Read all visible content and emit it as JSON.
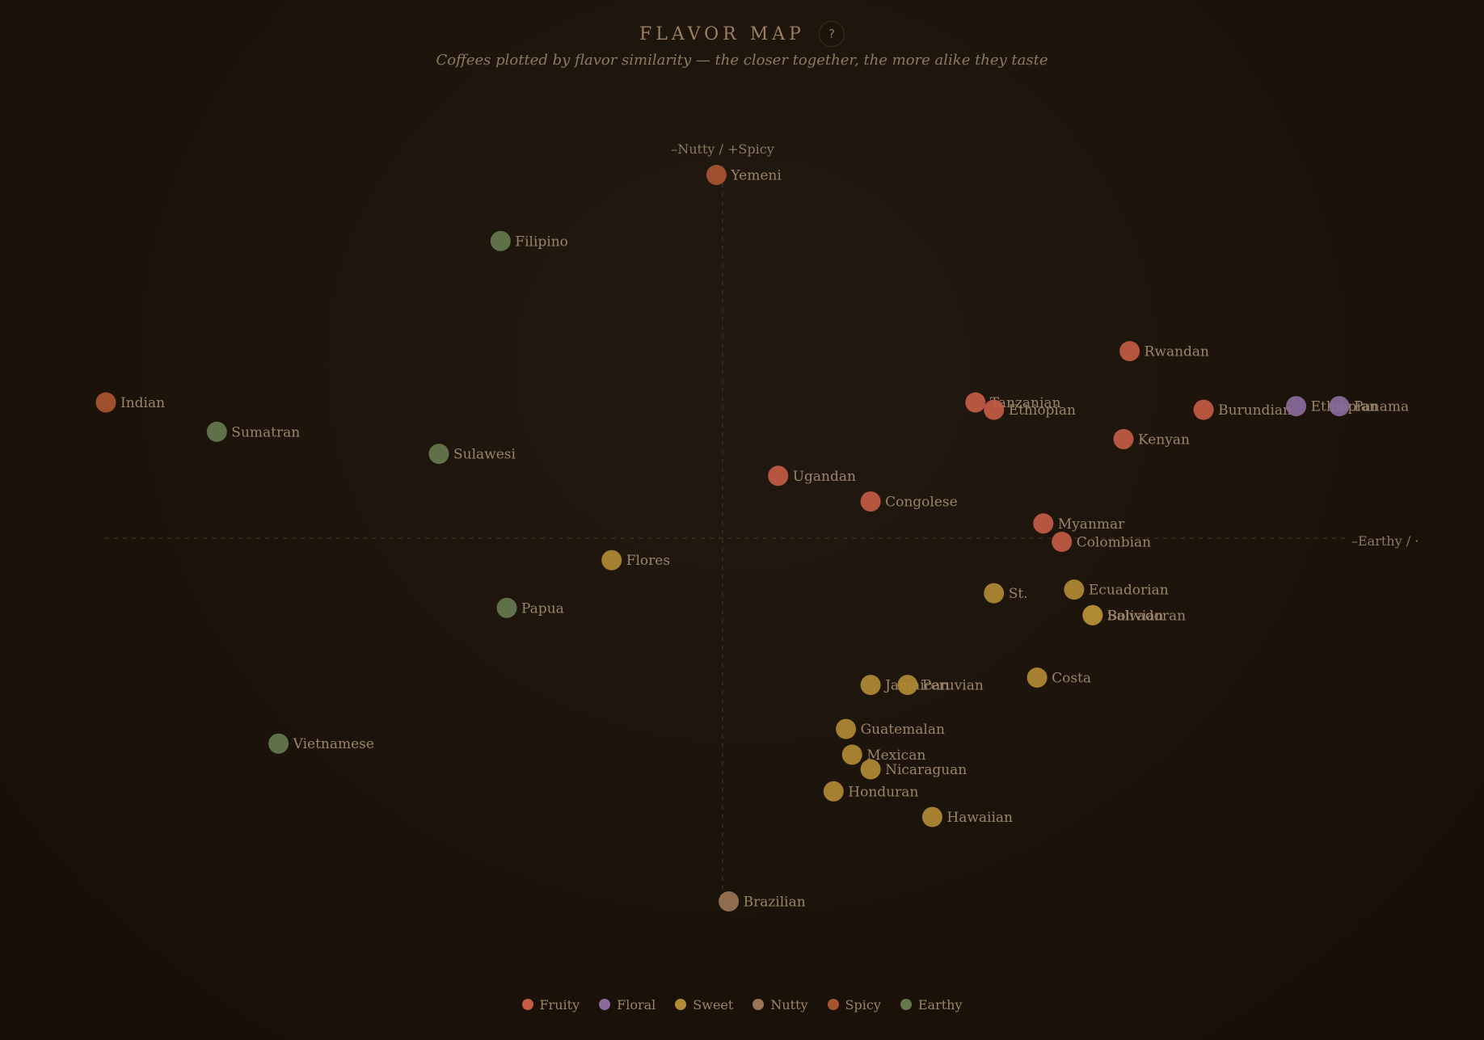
{
  "header": {
    "title": "FLAVOR MAP",
    "help_label": "?",
    "subtitle": "Coffees plotted by flavor similarity — the closer together, the more alike they taste"
  },
  "chart_data": {
    "type": "scatter",
    "title": "FLAVOR MAP",
    "subtitle": "Coffees plotted by flavor similarity — the closer together, the more alike they taste",
    "xlabel": "–Earthy / ·",
    "ylabel": "–Nutty / +Spicy",
    "xlim": [
      -1,
      1
    ],
    "ylim": [
      -1,
      1
    ],
    "grid": false,
    "legend_position": "bottom",
    "categories": [
      {
        "name": "Fruity",
        "color": "#c45c44"
      },
      {
        "name": "Floral",
        "color": "#8a6c9c"
      },
      {
        "name": "Sweet",
        "color": "#b08a34"
      },
      {
        "name": "Nutty",
        "color": "#9a7556"
      },
      {
        "name": "Spicy",
        "color": "#a85532"
      },
      {
        "name": "Earthy",
        "color": "#66784e"
      }
    ],
    "points": [
      {
        "label": "Yemeni",
        "category": "Spicy",
        "x": -0.01,
        "y": 0.99
      },
      {
        "label": "Filipino",
        "category": "Earthy",
        "x": -0.36,
        "y": 0.81
      },
      {
        "label": "Rwandan",
        "category": "Fruity",
        "x": 0.66,
        "y": 0.51
      },
      {
        "label": "Indian",
        "category": "Spicy",
        "x": -1.0,
        "y": 0.37
      },
      {
        "label": "Tanzanian",
        "category": "Fruity",
        "x": 0.41,
        "y": 0.37
      },
      {
        "label": "Ethiopian",
        "category": "Fruity",
        "x": 0.44,
        "y": 0.35
      },
      {
        "label": "Burundian",
        "category": "Fruity",
        "x": 0.78,
        "y": 0.35
      },
      {
        "label": "Ethiopian",
        "category": "Floral",
        "x": 0.93,
        "y": 0.36
      },
      {
        "label": "Panama",
        "category": "Floral",
        "x": 1.0,
        "y": 0.36
      },
      {
        "label": "Sumatran",
        "category": "Earthy",
        "x": -0.82,
        "y": 0.29
      },
      {
        "label": "Kenyan",
        "category": "Fruity",
        "x": 0.65,
        "y": 0.27
      },
      {
        "label": "Sulawesi",
        "category": "Earthy",
        "x": -0.46,
        "y": 0.23
      },
      {
        "label": "Ugandan",
        "category": "Fruity",
        "x": 0.09,
        "y": 0.17
      },
      {
        "label": "Congolese",
        "category": "Fruity",
        "x": 0.24,
        "y": 0.1
      },
      {
        "label": "Myanmar",
        "category": "Fruity",
        "x": 0.52,
        "y": 0.04
      },
      {
        "label": "Colombian",
        "category": "Fruity",
        "x": 0.55,
        "y": -0.01
      },
      {
        "label": "Flores",
        "category": "Sweet",
        "x": -0.18,
        "y": -0.06
      },
      {
        "label": "St.",
        "category": "Sweet",
        "x": 0.44,
        "y": -0.15
      },
      {
        "label": "Ecuadorian",
        "category": "Sweet",
        "x": 0.57,
        "y": -0.14
      },
      {
        "label": "Bolivian",
        "category": "Sweet",
        "x": 0.6,
        "y": -0.21
      },
      {
        "label": "Salvadoran",
        "category": "Sweet",
        "x": 0.6,
        "y": -0.21
      },
      {
        "label": "Papua",
        "category": "Earthy",
        "x": -0.35,
        "y": -0.19
      },
      {
        "label": "Costa",
        "category": "Sweet",
        "x": 0.51,
        "y": -0.38
      },
      {
        "label": "Jamaican",
        "category": "Sweet",
        "x": 0.24,
        "y": -0.4
      },
      {
        "label": "Peruvian",
        "category": "Sweet",
        "x": 0.3,
        "y": -0.4
      },
      {
        "label": "Guatemalan",
        "category": "Sweet",
        "x": 0.2,
        "y": -0.52
      },
      {
        "label": "Vietnamese",
        "category": "Earthy",
        "x": -0.72,
        "y": -0.56
      },
      {
        "label": "Mexican",
        "category": "Sweet",
        "x": 0.21,
        "y": -0.59
      },
      {
        "label": "Nicaraguan",
        "category": "Sweet",
        "x": 0.24,
        "y": -0.63
      },
      {
        "label": "Honduran",
        "category": "Sweet",
        "x": 0.18,
        "y": -0.69
      },
      {
        "label": "Hawaiian",
        "category": "Sweet",
        "x": 0.34,
        "y": -0.76
      },
      {
        "label": "Brazilian",
        "category": "Nutty",
        "x": 0.01,
        "y": -0.99
      }
    ]
  }
}
